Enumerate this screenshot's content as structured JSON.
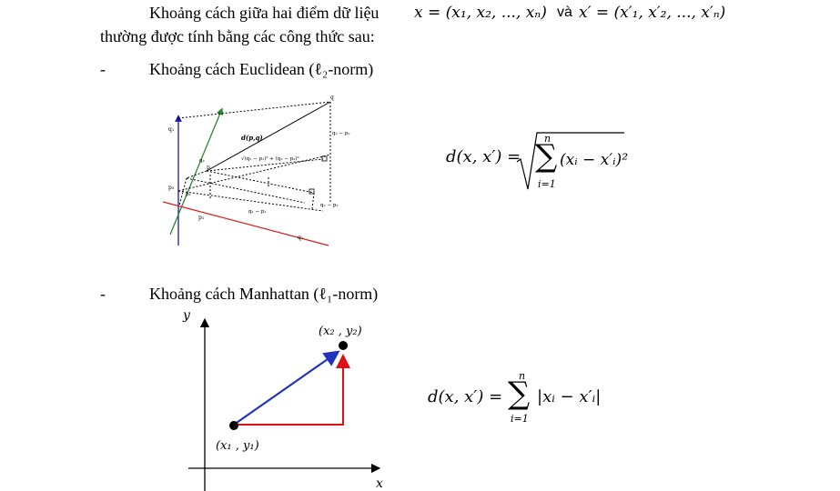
{
  "intro": {
    "line1": "Khoảng cách giữa hai điểm dữ liệu",
    "formula_x": "x = (x₁, x₂, ..., xₙ)",
    "connector": "và",
    "formula_xprime": "x′ = (x′₁, x′₂, ..., x′ₙ)",
    "line2": "thường được tính bằng các công thức sau:"
  },
  "euclidean": {
    "bullet": "-",
    "heading": "Khoảng cách Euclidean (ℓ₂-norm)",
    "formula_lhs": "d(x, x′) =",
    "sum_top": "n",
    "sum_bottom": "i=1",
    "sum_body": "(xᵢ − x′ᵢ)²",
    "figure": {
      "q1_axis": "q₁",
      "p2_axis": "p₂",
      "p1_axis": "p₁",
      "q1_bottom": "q₁",
      "q_point": "q",
      "p_point": "p",
      "dpq": "d(p,q)",
      "sqrt_label": "√(q₁ − p₁)² + (q₂ − p₂)²",
      "q2_minus_p2_top": "q₂ − p₂",
      "q2_minus_p2_mid": "q₂ − p₂",
      "q1_minus_p1": "q₁ − p₁",
      "p2_small": "p₂",
      "p1_small": "p₁",
      "q2_small": "q₂"
    }
  },
  "manhattan": {
    "bullet": "-",
    "heading": "Khoảng cách Manhattan (ℓ₁-norm)",
    "formula_lhs": "d(x, x′) =",
    "sum_top": "n",
    "sum_bottom": "i=1",
    "sum_body": "|xᵢ − x′ᵢ|",
    "figure": {
      "y_axis": "y",
      "x_axis": "x",
      "point1": "(x₁ , y₁)",
      "point2": "(x₂ , y₂)"
    }
  }
}
